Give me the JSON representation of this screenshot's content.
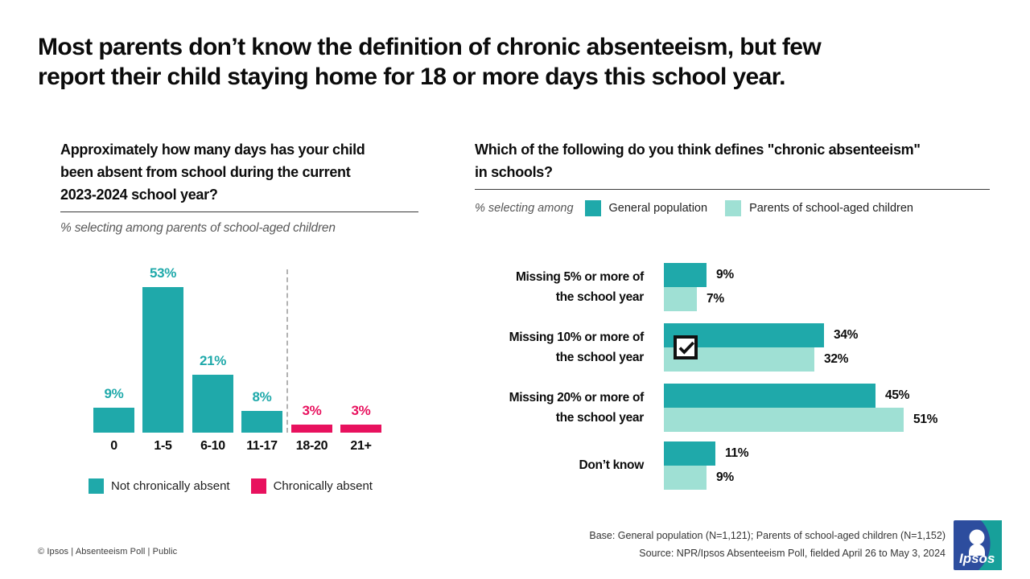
{
  "title": {
    "line1": "Most parents don’t know the definition of chronic absenteeism, but few",
    "line2": "report their child staying home for 18 or more days this school year."
  },
  "colors": {
    "teal": "#1FA9AA",
    "light_teal": "#9FE0D4",
    "pink": "#E8115E",
    "text": "#0C0C0C",
    "muted": "#595959",
    "divider": "#B3B3B3",
    "logo_blue": "#2D4D9E",
    "logo_teal": "#17A09A"
  },
  "chart_data": [
    {
      "type": "bar",
      "title": "Approximately how many days has your child been absent from school during the current 2023-2024 school year?",
      "title_lines": [
        "Approximately how many days has your child",
        "been absent from school during the current",
        "2023-2024 school year?"
      ],
      "subtitle": "% selecting among parents of school-aged children",
      "categories": [
        "0",
        "1-5",
        "6-10",
        "11-17",
        "18-20",
        "21+"
      ],
      "values": [
        9,
        53,
        21,
        8,
        3,
        3
      ],
      "value_suffix": "%",
      "bar_groups": [
        "not_chronic",
        "not_chronic",
        "not_chronic",
        "not_chronic",
        "chronic",
        "chronic"
      ],
      "divider_after_index": 3,
      "ylim": [
        0,
        60
      ],
      "grid": false,
      "legend": [
        {
          "label": "Not chronically absent",
          "color_key": "teal"
        },
        {
          "label": "Chronically absent",
          "color_key": "pink"
        }
      ]
    },
    {
      "type": "bar",
      "orientation": "horizontal",
      "title": "Which of the following do you think defines \"chronic absenteeism\" in schools?",
      "title_lines": [
        "Which of the following do you think defines \"chronic absenteeism\"",
        "in schools?"
      ],
      "legend_prefix": "% selecting among",
      "categories": [
        "Missing 5% or more of the school year",
        "Missing 10% or more of the school year",
        "Missing 20% or more of the school year",
        "Don’t know"
      ],
      "categories_lines": [
        [
          "Missing 5% or more of",
          "the school year"
        ],
        [
          "Missing 10% or more of",
          "the school year"
        ],
        [
          "Missing 20% or more of",
          "the school year"
        ],
        [
          "Don’t know"
        ]
      ],
      "series": [
        {
          "name": "General population",
          "color_key": "teal",
          "values": [
            9,
            34,
            45,
            11
          ]
        },
        {
          "name": "Parents of school-aged children",
          "color_key": "light_teal",
          "values": [
            7,
            32,
            51,
            9
          ]
        }
      ],
      "value_suffix": "%",
      "correct_answer_index": 1,
      "xlim": [
        0,
        55
      ],
      "grid": false
    }
  ],
  "footer": {
    "copyright": "© Ipsos | Absenteeism Poll | Public",
    "base": "Base: General population (N=1,121); Parents of school-aged children (N=1,152)",
    "source": "Source: NPR/Ipsos Absenteeism Poll, fielded April 26 to May 3, 2024",
    "logo_text": "Ipsos"
  }
}
